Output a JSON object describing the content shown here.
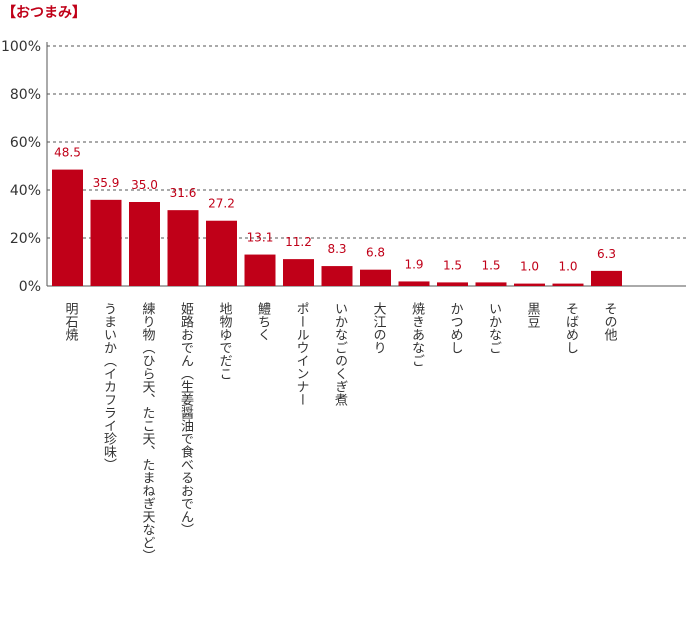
{
  "title": "【おつまみ】",
  "colors": {
    "bar": "#c00018",
    "value_label": "#c00018",
    "axis_text": "#333333",
    "grid": "#555555"
  },
  "chart_data": {
    "type": "bar",
    "title": "【おつまみ】",
    "xlabel": "",
    "ylabel": "",
    "ylim": [
      0,
      100
    ],
    "yticks": [
      "0%",
      "20%",
      "40%",
      "60%",
      "80%",
      "100%"
    ],
    "grid": true,
    "categories": [
      "明石焼",
      "うまいか（イカフライ珍味）",
      "練り物（ひら天、たこ天、たまねぎ天など）",
      "姫路おでん（生姜醤油で食べるおでん）",
      "地物ゆでだこ",
      "鱧ちく",
      "ポールウインナー",
      "いかなごのくぎ煮",
      "大江のり",
      "焼きあなご",
      "かつめし",
      "いかなご",
      "黒豆",
      "そばめし",
      "その他"
    ],
    "values": [
      48.5,
      35.9,
      35.0,
      31.6,
      27.2,
      13.1,
      11.2,
      8.3,
      6.8,
      1.9,
      1.5,
      1.5,
      1.0,
      1.0,
      6.3
    ],
    "value_labels": [
      "48.5",
      "35.9",
      "35.0",
      "31.6",
      "27.2",
      "13.1",
      "11.2",
      "8.3",
      "6.8",
      "1.9",
      "1.5",
      "1.5",
      "1.0",
      "1.0",
      "6.3"
    ]
  }
}
